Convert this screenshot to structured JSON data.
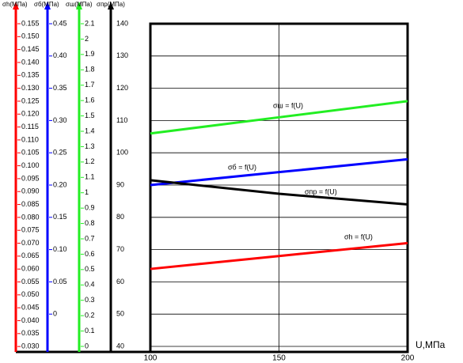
{
  "chart_data": {
    "type": "line",
    "x": [
      100,
      150,
      200
    ],
    "xlim": [
      100,
      200
    ],
    "xticks": [
      100,
      150,
      200
    ],
    "xlabel": "U,МПа",
    "grid": true,
    "axes": [
      {
        "label": "σh(МПа)",
        "color": "#ff0000",
        "ylim": [
          0.0279,
          0.155
        ],
        "yticks": [
          {
            "value": 0.03,
            "label": "0.030"
          },
          {
            "value": 0.035,
            "label": "0.035"
          },
          {
            "value": 0.04,
            "label": "0.040"
          },
          {
            "value": 0.045,
            "label": "0.045"
          },
          {
            "value": 0.05,
            "label": "0.050"
          },
          {
            "value": 0.055,
            "label": "0.055"
          },
          {
            "value": 0.06,
            "label": "0.060"
          },
          {
            "value": 0.065,
            "label": "0.065"
          },
          {
            "value": 0.07,
            "label": "0.070"
          },
          {
            "value": 0.075,
            "label": "0.075"
          },
          {
            "value": 0.08,
            "label": "0.080"
          },
          {
            "value": 0.085,
            "label": "0.085"
          },
          {
            "value": 0.09,
            "label": "0.090"
          },
          {
            "value": 0.095,
            "label": "0.095"
          },
          {
            "value": 0.1,
            "label": "0.100"
          },
          {
            "value": 0.105,
            "label": "0.105"
          },
          {
            "value": 0.11,
            "label": "0.110"
          },
          {
            "value": 0.115,
            "label": "0.115"
          },
          {
            "value": 0.12,
            "label": "0.120"
          },
          {
            "value": 0.125,
            "label": "0.125"
          },
          {
            "value": 0.13,
            "label": "0.130"
          },
          {
            "value": 0.135,
            "label": "0.135"
          },
          {
            "value": 0.14,
            "label": "0.140"
          },
          {
            "value": 0.145,
            "label": "0.145"
          },
          {
            "value": 0.15,
            "label": "0.150"
          },
          {
            "value": 0.155,
            "label": "0.155"
          }
        ]
      },
      {
        "label": "σб(МПа)",
        "color": "#0000ff",
        "ylim": [
          -0.0586,
          0.45
        ],
        "yticks": [
          0,
          0.05,
          {
            "value": 0.1,
            "label": "0.10"
          },
          0.15,
          {
            "value": 0.2,
            "label": "0.20"
          },
          0.25,
          {
            "value": 0.3,
            "label": "0.30"
          },
          0.35,
          {
            "value": 0.4,
            "label": "0.40"
          },
          0.45
        ]
      },
      {
        "label": "σш(МПа)",
        "color": "#22ee22",
        "ylim": [
          -0.036,
          2.1
        ],
        "yticks": [
          0,
          0.1,
          0.2,
          0.3,
          0.4,
          0.5,
          0.6,
          0.7,
          0.8,
          0.9,
          1,
          1.1,
          1.2,
          1.3,
          1.4,
          1.5,
          1.6,
          1.7,
          1.8,
          1.9,
          2,
          2.1
        ]
      },
      {
        "label": "σпр(МПа)",
        "color": "#000000",
        "ylim": [
          38.28,
          140
        ],
        "yticks": [
          40,
          50,
          60,
          70,
          80,
          90,
          100,
          110,
          120,
          130,
          140
        ]
      }
    ],
    "series": [
      {
        "name": "σш = f(U)",
        "color": "#22ee22",
        "values": [
          106,
          111,
          116
        ]
      },
      {
        "name": "σб = f(U)",
        "color": "#0000ff",
        "values": [
          90,
          94,
          98
        ]
      },
      {
        "name": "σпр = f(U)",
        "color": "#000000",
        "values": [
          91.5,
          87.3,
          84
        ]
      },
      {
        "name": "σh = f(U)",
        "color": "#ff0000",
        "values": [
          64,
          68,
          72
        ]
      }
    ]
  }
}
